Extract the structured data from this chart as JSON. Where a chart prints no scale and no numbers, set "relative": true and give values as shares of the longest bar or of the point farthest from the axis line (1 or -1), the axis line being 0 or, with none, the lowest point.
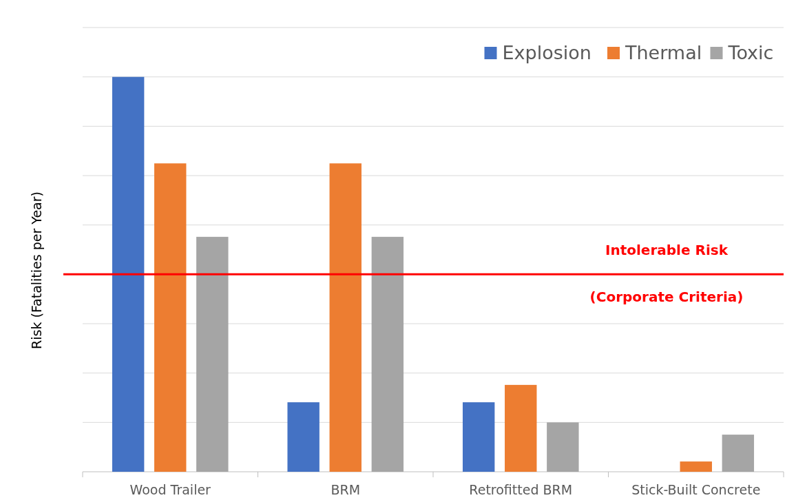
{
  "chart_data": {
    "type": "bar",
    "relative": true,
    "ylabel": "Risk (Fatalities per Year)",
    "categories": [
      "Wood Trailer",
      "BRM",
      "Retrofitted BRM",
      "Stick-Built Concrete"
    ],
    "series": [
      {
        "name": "Explosion",
        "color": "#4472c4",
        "values": [
          1,
          0.176,
          0.176,
          0
        ]
      },
      {
        "name": "Thermal",
        "color": "#ed7d31",
        "values": [
          0.781,
          0.781,
          0.22,
          0.026
        ]
      },
      {
        "name": "Toxic",
        "color": "#a5a5a5",
        "values": [
          0.595,
          0.595,
          0.125,
          0.094
        ]
      }
    ],
    "ref_lines": [
      {
        "axis": "y",
        "value": 0.5,
        "label": "Intolerable Risk",
        "color": "#ff0000"
      }
    ],
    "annotations": [
      "(Corporate Criteria)"
    ],
    "grid": "y",
    "legend": "top right"
  }
}
